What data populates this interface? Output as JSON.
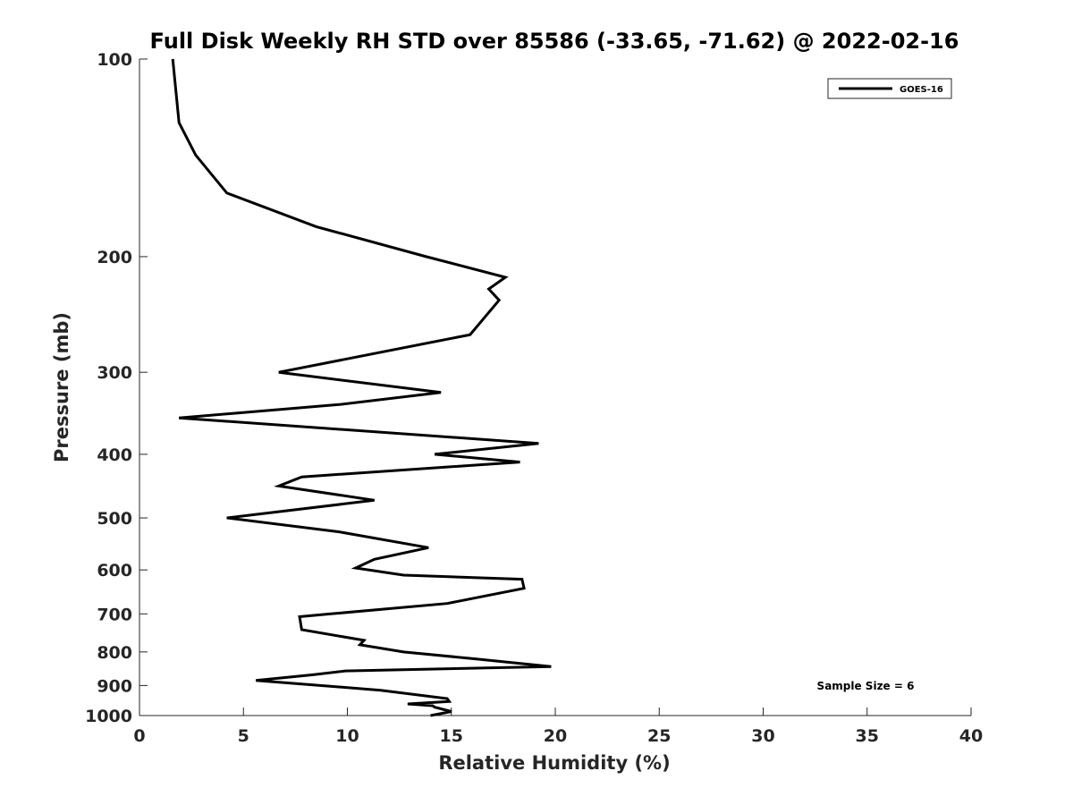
{
  "chart_data": {
    "type": "line",
    "title": "Full Disk Weekly RH STD over 85586 (-33.65, -71.62) @ 2022-02-16",
    "xlabel": "Relative Humidity (%)",
    "ylabel": "Pressure (mb)",
    "xlim": [
      0,
      40
    ],
    "ylim": [
      100,
      1000
    ],
    "y_scale": "log",
    "y_reversed": true,
    "x_ticks": [
      0,
      5,
      10,
      15,
      20,
      25,
      30,
      35,
      40
    ],
    "y_ticks": [
      100,
      200,
      300,
      400,
      500,
      600,
      700,
      800,
      900,
      1000
    ],
    "grid": false,
    "legend": {
      "position": "top-right",
      "entries": [
        "GOES-16"
      ]
    },
    "annotation": "Sample Size = 6",
    "series": [
      {
        "name": "GOES-16",
        "color": "#000000",
        "points": [
          [
            1.6,
            100
          ],
          [
            1.9,
            125
          ],
          [
            2.7,
            140
          ],
          [
            4.2,
            160
          ],
          [
            8.5,
            180
          ],
          [
            13.8,
            200
          ],
          [
            17.6,
            215
          ],
          [
            16.8,
            224
          ],
          [
            17.3,
            233
          ],
          [
            15.9,
            263
          ],
          [
            6.7,
            300
          ],
          [
            14.5,
            322
          ],
          [
            9.6,
            336
          ],
          [
            1.9,
            352
          ],
          [
            19.2,
            385
          ],
          [
            14.2,
            400
          ],
          [
            18.3,
            411
          ],
          [
            7.8,
            433
          ],
          [
            6.7,
            447
          ],
          [
            11.3,
            470
          ],
          [
            4.2,
            500
          ],
          [
            9.6,
            525
          ],
          [
            13.9,
            555
          ],
          [
            11.3,
            578
          ],
          [
            10.4,
            596
          ],
          [
            12.7,
            611
          ],
          [
            18.4,
            620
          ],
          [
            18.5,
            640
          ],
          [
            14.8,
            675
          ],
          [
            9.2,
            700
          ],
          [
            7.7,
            707
          ],
          [
            7.8,
            740
          ],
          [
            10.8,
            768
          ],
          [
            10.6,
            780
          ],
          [
            12.7,
            800
          ],
          [
            16.2,
            820
          ],
          [
            19.8,
            842
          ],
          [
            9.9,
            855
          ],
          [
            8.3,
            867
          ],
          [
            5.6,
            884
          ],
          [
            11.6,
            915
          ],
          [
            14.8,
            942
          ],
          [
            14.9,
            952
          ],
          [
            12.9,
            960
          ],
          [
            14.1,
            966
          ],
          [
            14.2,
            971
          ],
          [
            15.0,
            986
          ],
          [
            14.0,
            1000
          ]
        ]
      }
    ]
  }
}
